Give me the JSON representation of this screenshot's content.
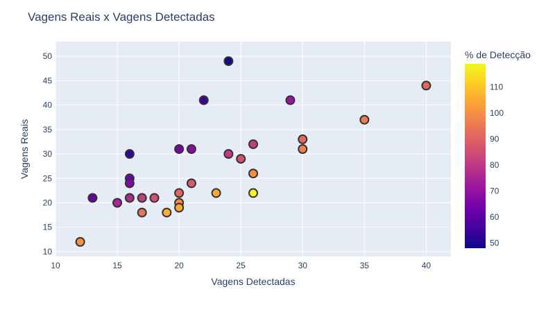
{
  "chart_data": {
    "type": "scatter",
    "title": "Vagens Reais x Vagens Detectadas",
    "xlabel": "Vagens Detectadas",
    "ylabel": "Vagens Reais",
    "xlim": [
      10,
      42
    ],
    "ylim": [
      9,
      53
    ],
    "xticks": [
      10,
      15,
      20,
      25,
      30,
      35,
      40
    ],
    "yticks": [
      10,
      15,
      20,
      25,
      30,
      35,
      40,
      45,
      50
    ],
    "colorbar": {
      "title": "% de Detecção",
      "range": [
        48,
        119
      ],
      "ticks": [
        50,
        60,
        70,
        80,
        90,
        100,
        110
      ],
      "colorscale": [
        "#0d0887",
        "#46039f",
        "#7201a8",
        "#9c179e",
        "#bd3786",
        "#d8576b",
        "#ed7953",
        "#fb9f3a",
        "#fdca26",
        "#f0f921"
      ]
    },
    "points": [
      {
        "x": 24,
        "y": 49,
        "c": 49
      },
      {
        "x": 22,
        "y": 41,
        "c": 54
      },
      {
        "x": 29,
        "y": 41,
        "c": 71
      },
      {
        "x": 40,
        "y": 44,
        "c": 91
      },
      {
        "x": 35,
        "y": 37,
        "c": 95
      },
      {
        "x": 30,
        "y": 33,
        "c": 91
      },
      {
        "x": 30,
        "y": 31,
        "c": 97
      },
      {
        "x": 26,
        "y": 32,
        "c": 81
      },
      {
        "x": 24,
        "y": 30,
        "c": 80
      },
      {
        "x": 25,
        "y": 29,
        "c": 86
      },
      {
        "x": 16,
        "y": 30,
        "c": 53
      },
      {
        "x": 20,
        "y": 31,
        "c": 65
      },
      {
        "x": 21,
        "y": 31,
        "c": 68
      },
      {
        "x": 26,
        "y": 26,
        "c": 100
      },
      {
        "x": 21,
        "y": 24,
        "c": 88
      },
      {
        "x": 16,
        "y": 25,
        "c": 64
      },
      {
        "x": 16,
        "y": 24,
        "c": 67
      },
      {
        "x": 13,
        "y": 21,
        "c": 62
      },
      {
        "x": 16,
        "y": 21,
        "c": 76
      },
      {
        "x": 17,
        "y": 21,
        "c": 81
      },
      {
        "x": 18,
        "y": 21,
        "c": 86
      },
      {
        "x": 20,
        "y": 22,
        "c": 91
      },
      {
        "x": 23,
        "y": 22,
        "c": 105
      },
      {
        "x": 26,
        "y": 22,
        "c": 118
      },
      {
        "x": 15,
        "y": 20,
        "c": 75
      },
      {
        "x": 20,
        "y": 20,
        "c": 100
      },
      {
        "x": 20,
        "y": 19,
        "c": 105
      },
      {
        "x": 17,
        "y": 18,
        "c": 94
      },
      {
        "x": 19,
        "y": 18,
        "c": 106
      },
      {
        "x": 12,
        "y": 12,
        "c": 100
      }
    ]
  }
}
